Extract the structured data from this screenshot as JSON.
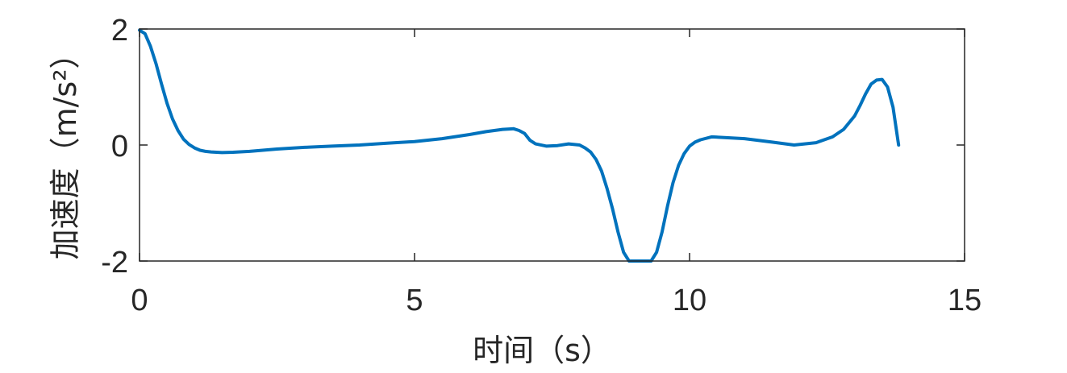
{
  "chart_data": {
    "type": "line",
    "title": "",
    "xlabel": "时间（s）",
    "ylabel": "加速度（m/s²）",
    "xlim": [
      0,
      15
    ],
    "ylim": [
      -2,
      2
    ],
    "xticks": [
      0,
      5,
      10,
      15
    ],
    "xtick_labels": [
      "0",
      "5",
      "10",
      "15"
    ],
    "yticks": [
      -2,
      0,
      2
    ],
    "ytick_labels": [
      "-2",
      "0",
      "2"
    ],
    "grid": false,
    "legend": "none",
    "colors": {
      "series": "#0072BD",
      "axes": "#262626"
    },
    "series": [
      {
        "x": [
          0,
          0.1,
          0.2,
          0.3,
          0.4,
          0.5,
          0.6,
          0.7,
          0.8,
          0.9,
          1.0,
          1.1,
          1.2,
          1.3,
          1.5,
          1.7,
          2.0,
          2.5,
          3.0,
          3.5,
          4.0,
          4.5,
          5.0,
          5.5,
          6.0,
          6.3,
          6.6,
          6.8,
          6.9,
          7.0,
          7.1,
          7.2,
          7.4,
          7.6,
          7.8,
          8.0,
          8.1,
          8.2,
          8.3,
          8.4,
          8.5,
          8.6,
          8.7,
          8.8,
          8.9,
          9.0,
          9.1,
          9.2,
          9.3,
          9.4,
          9.5,
          9.6,
          9.7,
          9.8,
          9.9,
          10.0,
          10.1,
          10.2,
          10.4,
          10.6,
          11.0,
          11.5,
          11.9,
          12.3,
          12.6,
          12.8,
          13.0,
          13.1,
          13.2,
          13.3,
          13.4,
          13.5,
          13.6,
          13.7,
          13.8
        ],
        "y": [
          1.98,
          1.92,
          1.7,
          1.4,
          1.05,
          0.72,
          0.45,
          0.25,
          0.1,
          0.01,
          -0.05,
          -0.09,
          -0.11,
          -0.12,
          -0.13,
          -0.125,
          -0.11,
          -0.07,
          -0.04,
          -0.02,
          0.0,
          0.03,
          0.06,
          0.11,
          0.18,
          0.23,
          0.27,
          0.28,
          0.25,
          0.2,
          0.08,
          0.02,
          -0.02,
          -0.01,
          0.02,
          0.0,
          -0.05,
          -0.12,
          -0.25,
          -0.45,
          -0.75,
          -1.1,
          -1.5,
          -1.85,
          -2.0,
          -2.0,
          -2.0,
          -2.0,
          -2.0,
          -1.85,
          -1.5,
          -1.05,
          -0.65,
          -0.35,
          -0.15,
          -0.02,
          0.05,
          0.09,
          0.14,
          0.13,
          0.11,
          0.05,
          0.0,
          0.04,
          0.14,
          0.27,
          0.5,
          0.68,
          0.88,
          1.05,
          1.12,
          1.13,
          1.0,
          0.65,
          0.0
        ]
      }
    ]
  }
}
